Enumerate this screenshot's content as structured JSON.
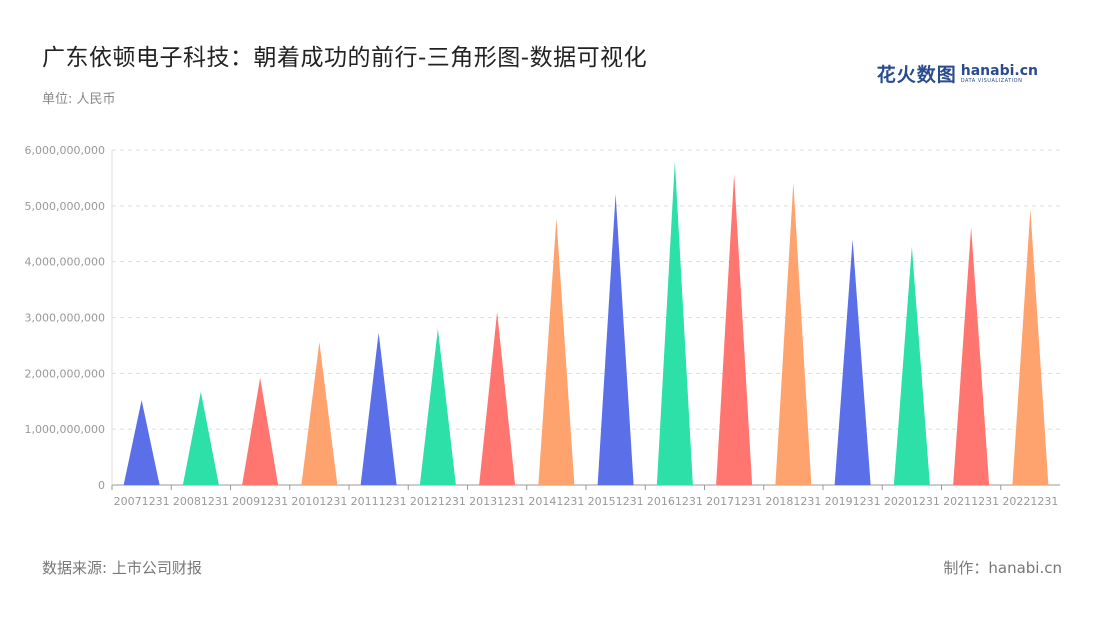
{
  "header": {
    "title": "广东依顿电子科技：朝着成功的前行-三角形图-数据可视化",
    "unit": "单位: 人民币"
  },
  "logo": {
    "cn": "花火数图",
    "en": "hanabi.cn",
    "sub": "DATA VISUALIZATION"
  },
  "footer": {
    "source": "数据来源: 上市公司财报",
    "maker": "制作：hanabi.cn"
  },
  "colors": {
    "palette": [
      "#5b6fe8",
      "#2de0a8",
      "#ff7670",
      "#ffa36e"
    ],
    "grid": "#dddddd",
    "axis": "#999999",
    "tick_text": "#999999"
  },
  "chart_data": {
    "type": "bar",
    "mark": "triangle",
    "categories": [
      "20071231",
      "20081231",
      "20091231",
      "20101231",
      "20111231",
      "20121231",
      "20131231",
      "20141231",
      "20151231",
      "20161231",
      "20171231",
      "20181231",
      "20191231",
      "20201231",
      "20211231",
      "20221231"
    ],
    "values": [
      1520000000,
      1670000000,
      1920000000,
      2560000000,
      2730000000,
      2800000000,
      3100000000,
      4780000000,
      5210000000,
      5800000000,
      5570000000,
      5420000000,
      4400000000,
      4270000000,
      4620000000,
      4940000000
    ],
    "ylim": [
      0,
      6000000000
    ],
    "yticks": [
      "0",
      "1,000,000,000",
      "2,000,000,000",
      "3,000,000,000",
      "4,000,000,000",
      "5,000,000,000",
      "6,000,000,000"
    ],
    "grid": true,
    "legend": "none"
  }
}
